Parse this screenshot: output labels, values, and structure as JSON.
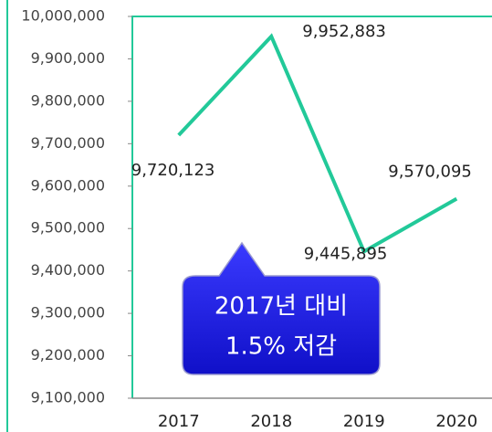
{
  "chart_data": {
    "type": "line",
    "categories": [
      "2017",
      "2018",
      "2019",
      "2020"
    ],
    "series": [
      {
        "color": "#22c999",
        "values": [
          9720123,
          9952883,
          9445895,
          9570095
        ],
        "value_labels": [
          "9,720,123",
          "9,952,883",
          "9,445,895",
          "9,570,095"
        ]
      }
    ],
    "ylim": [
      9100000,
      10000000
    ],
    "yticks": [
      {
        "value": 9100000,
        "label": "9,100,000"
      },
      {
        "value": 9200000,
        "label": "9,200,000"
      },
      {
        "value": 9300000,
        "label": "9,300,000"
      },
      {
        "value": 9400000,
        "label": "9,400,000"
      },
      {
        "value": 9500000,
        "label": "9,500,000"
      },
      {
        "value": 9600000,
        "label": "9,600,000"
      },
      {
        "value": 9700000,
        "label": "9,700,000"
      },
      {
        "value": 9800000,
        "label": "9,800,000"
      },
      {
        "value": 9900000,
        "label": "9,900,000"
      },
      {
        "value": 10000000,
        "label": "10,000,000"
      }
    ],
    "grid": false,
    "annotation": [
      "2017년 대비",
      "1.5% 저감"
    ]
  }
}
